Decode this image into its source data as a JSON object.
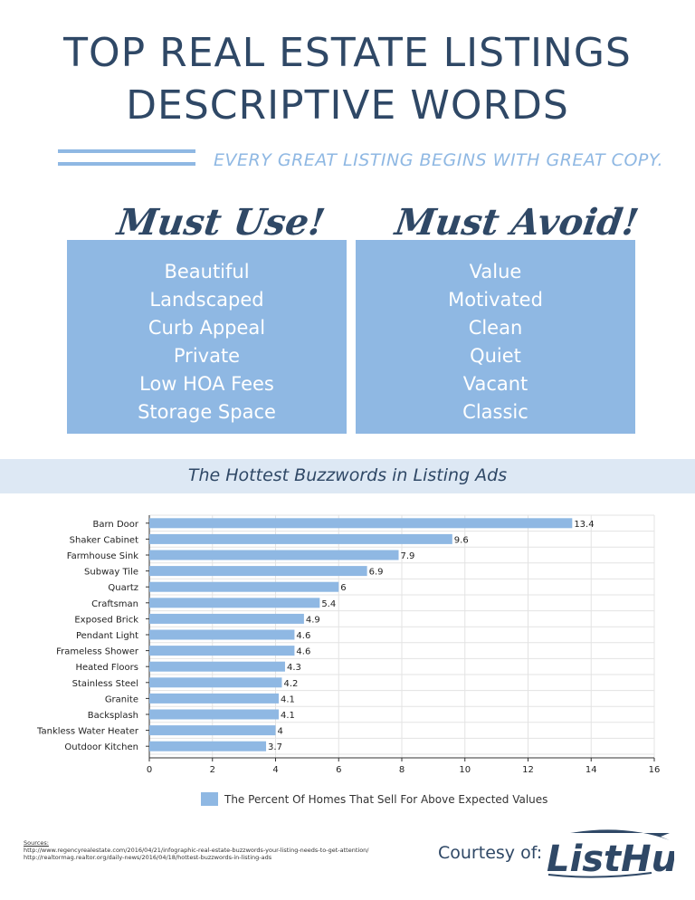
{
  "header": {
    "title_line1": "TOP REAL ESTATE LISTINGS",
    "title_line2": "DESCRIPTIVE WORDS",
    "subtitle": "EVERY GREAT LISTING BEGINS WITH GREAT COPY."
  },
  "must_use": {
    "heading": "Must Use!",
    "items": [
      "Beautiful",
      "Landscaped",
      "Curb Appeal",
      "Private",
      "Low HOA Fees",
      "Storage Space"
    ]
  },
  "must_avoid": {
    "heading": "Must Avoid!",
    "items": [
      "Value",
      "Motivated",
      "Clean",
      "Quiet",
      "Vacant",
      "Classic"
    ]
  },
  "chart_data": {
    "type": "bar",
    "orientation": "horizontal",
    "title": "The Hottest Buzzwords in Listing Ads",
    "categories": [
      "Barn Door",
      "Shaker Cabinet",
      "Farmhouse Sink",
      "Subway Tile",
      "Quartz",
      "Craftsman",
      "Exposed Brick",
      "Pendant Light",
      "Frameless Shower",
      "Heated Floors",
      "Stainless Steel",
      "Granite",
      "Backsplash",
      "Tankless Water Heater",
      "Outdoor Kitchen"
    ],
    "series": [
      {
        "name": "The Percent Of Homes That Sell For Above Expected Values",
        "values": [
          13.4,
          9.6,
          7.9,
          6.9,
          6,
          5.4,
          4.9,
          4.6,
          4.6,
          4.3,
          4.2,
          4.1,
          4.1,
          4,
          3.7
        ]
      }
    ],
    "xlim": [
      0,
      16
    ],
    "xticks": [
      0,
      2,
      4,
      6,
      8,
      10,
      12,
      14,
      16
    ],
    "grid": true,
    "legend": "bottom",
    "color": "#8fb8e3"
  },
  "footer": {
    "sources_label": "Sources:",
    "sources_text": "http://www.regencyrealestate.com/2016/04/21/infographic-real-estate-buzzwords-your-listing-needs-to-get-attention/ http://realtormag.realtor.org/daily-news/2016/04/18/hottest-buzzwords-in-listing-ads",
    "courtesy": "Courtesy of:",
    "logo_text": "ListHub"
  },
  "colors": {
    "navy": "#2f4866",
    "light_blue": "#8fb8e3",
    "band": "#dde8f4"
  }
}
